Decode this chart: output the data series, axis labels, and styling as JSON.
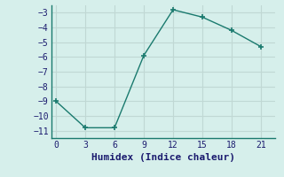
{
  "x": [
    0,
    3,
    6,
    9,
    12,
    15,
    18,
    21
  ],
  "y": [
    -9,
    -10.8,
    -10.8,
    -5.9,
    -2.8,
    -3.3,
    -4.2,
    -5.3
  ],
  "xlabel": "Humidex (Indice chaleur)",
  "ylim": [
    -11.5,
    -2.5
  ],
  "xlim": [
    -0.5,
    22.5
  ],
  "yticks": [
    -11,
    -10,
    -9,
    -8,
    -7,
    -6,
    -5,
    -4,
    -3
  ],
  "xticks": [
    0,
    3,
    6,
    9,
    12,
    15,
    18,
    21
  ],
  "line_color": "#1a7a6e",
  "marker": "+",
  "marker_size": 5,
  "bg_color": "#d6efeb",
  "grid_color": "#c0d8d4",
  "font_color": "#1a1a6e",
  "font_family": "monospace",
  "font_size": 7,
  "xlabel_fontsize": 8
}
